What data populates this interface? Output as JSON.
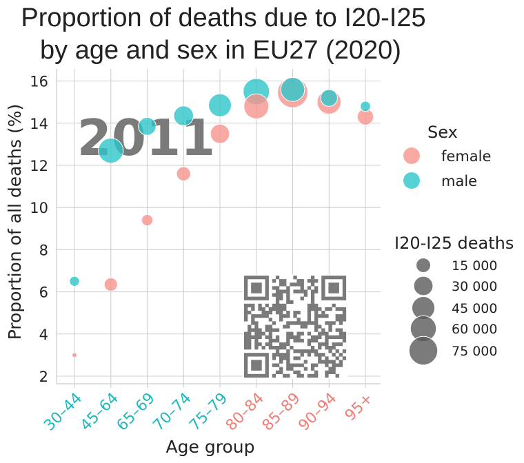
{
  "chart_data": {
    "type": "scatter",
    "title": "Proportion of deaths due to I20-I25",
    "subtitle": "by age and sex in EU27 (2020)",
    "xlabel": "Age group",
    "ylabel": "Proportion of all deaths (%)",
    "categories": [
      "30–44",
      "45–64",
      "65–69",
      "70–74",
      "75–79",
      "80–84",
      "85–89",
      "90–94",
      "95+"
    ],
    "category_colors": [
      "#1fb8bf",
      "#1fb8bf",
      "#1fb8bf",
      "#1fb8bf",
      "#1fb8bf",
      "#ef7f74",
      "#ef7f74",
      "#ef7f74",
      "#ef7f74"
    ],
    "ylim": [
      1.8,
      17
    ],
    "yticks": [
      "2",
      "4",
      "6",
      "8",
      "10",
      "12",
      "14",
      "16"
    ],
    "grid": true,
    "watermark": "2011",
    "series": [
      {
        "name": "female",
        "color": "#f8938c",
        "values": [
          3.0,
          6.35,
          9.4,
          11.6,
          13.5,
          14.8,
          15.45,
          15.0,
          14.3
        ],
        "deaths": [
          400,
          12000,
          8000,
          14000,
          30000,
          55000,
          85000,
          50000,
          20000
        ]
      },
      {
        "name": "male",
        "color": "#2ec5c9",
        "values": [
          6.5,
          12.7,
          13.85,
          14.35,
          14.85,
          15.5,
          15.6,
          15.2,
          14.8
        ],
        "deaths": [
          5500,
          55000,
          25000,
          32000,
          45000,
          62000,
          50000,
          22000,
          6000
        ]
      }
    ],
    "legend_sex": {
      "title": "Sex",
      "placement": "right",
      "items": [
        "female",
        "male"
      ]
    },
    "legend_size": {
      "title": "I20-I25 deaths",
      "placement": "right",
      "items": [
        {
          "label": "15 000",
          "value": 15000
        },
        {
          "label": "30 000",
          "value": 30000
        },
        {
          "label": "45 000",
          "value": 45000
        },
        {
          "label": "60 000",
          "value": 60000
        },
        {
          "label": "75 000",
          "value": 75000
        }
      ]
    }
  }
}
